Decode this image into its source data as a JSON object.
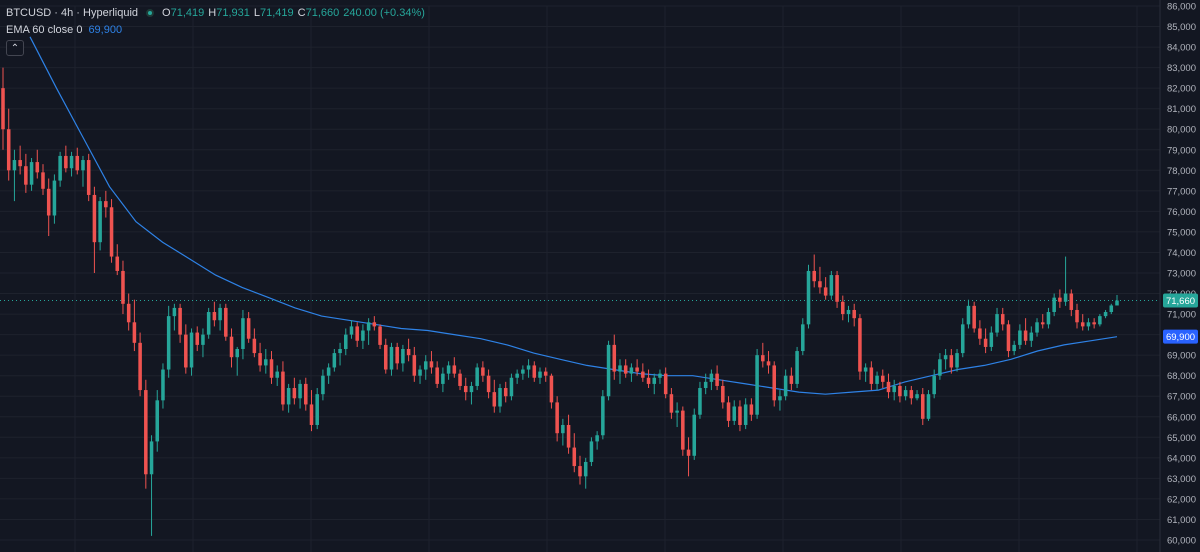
{
  "legend": {
    "symbol": "BTCUSD · 4h · Hyperliquid",
    "o_label": "O",
    "o_value": "71,419",
    "h_label": "H",
    "h_value": "71,931",
    "l_label": "L",
    "l_value": "71,419",
    "c_label": "C",
    "c_value": "71,660",
    "change": "240.00 (+0.34%)",
    "ema_name": "EMA 60 close 0",
    "ema_value": "69,900",
    "collapse_icon": "chevron-up-icon"
  },
  "colors": {
    "background": "#131722",
    "grid": "#1e222d",
    "up": "#26a69a",
    "down": "#ef5350",
    "ema": "#2e82e6",
    "price_tag": "#26a69a",
    "ema_tag": "#2962ff",
    "axis_text": "#b2b5be"
  },
  "chart_data": {
    "type": "candlestick",
    "ylim": [
      60000,
      86000
    ],
    "yticks": [
      "60,000",
      "61,000",
      "62,000",
      "63,000",
      "64,000",
      "65,000",
      "66,000",
      "67,000",
      "68,000",
      "69,000",
      "70,000",
      "71,000",
      "72,000",
      "73,000",
      "74,000",
      "75,000",
      "76,000",
      "77,000",
      "78,000",
      "79,000",
      "80,000",
      "81,000",
      "82,000",
      "83,000",
      "84,000",
      "85,000",
      "86,000"
    ],
    "last_price": 71660,
    "last_price_label": "71,660",
    "ema_last": 69900,
    "ema_last_label": "69,900",
    "candles": [
      [
        82000,
        83000,
        79000,
        80000
      ],
      [
        80000,
        81000,
        77500,
        78000
      ],
      [
        78000,
        79000,
        76500,
        78500
      ],
      [
        78500,
        79200,
        77800,
        78200
      ],
      [
        78200,
        78800,
        76900,
        77300
      ],
      [
        77300,
        78600,
        77000,
        78400
      ],
      [
        78400,
        79000,
        77600,
        77900
      ],
      [
        77900,
        78300,
        76800,
        77100
      ],
      [
        77100,
        77600,
        74800,
        75800
      ],
      [
        75800,
        77800,
        75400,
        77500
      ],
      [
        77500,
        78900,
        77200,
        78700
      ],
      [
        78700,
        79200,
        77900,
        78100
      ],
      [
        78100,
        78900,
        77700,
        78700
      ],
      [
        78700,
        79100,
        77800,
        78000
      ],
      [
        78000,
        78700,
        77200,
        78500
      ],
      [
        78500,
        78800,
        76500,
        76800
      ],
      [
        76800,
        77200,
        73000,
        74500
      ],
      [
        74500,
        76700,
        74100,
        76500
      ],
      [
        76500,
        77000,
        75700,
        76200
      ],
      [
        76200,
        76600,
        73500,
        73800
      ],
      [
        73800,
        74400,
        72900,
        73100
      ],
      [
        73100,
        73600,
        71000,
        71500
      ],
      [
        71500,
        72000,
        70200,
        70600
      ],
      [
        70600,
        71700,
        69200,
        69600
      ],
      [
        69600,
        70100,
        67000,
        67300
      ],
      [
        67300,
        67800,
        62500,
        63200
      ],
      [
        63200,
        65100,
        60200,
        64800
      ],
      [
        64800,
        67300,
        64300,
        66800
      ],
      [
        66800,
        68600,
        66400,
        68300
      ],
      [
        68300,
        71400,
        67900,
        70900
      ],
      [
        70900,
        71500,
        70200,
        71300
      ],
      [
        71300,
        71500,
        69600,
        70000
      ],
      [
        70000,
        70500,
        68100,
        68400
      ],
      [
        68400,
        70300,
        68000,
        70100
      ],
      [
        70100,
        70400,
        69200,
        69500
      ],
      [
        69500,
        70300,
        68900,
        70000
      ],
      [
        70000,
        71300,
        69800,
        71100
      ],
      [
        71100,
        71600,
        70400,
        70700
      ],
      [
        70700,
        71500,
        70200,
        71300
      ],
      [
        71300,
        71500,
        69700,
        69900
      ],
      [
        69900,
        70300,
        68400,
        68900
      ],
      [
        68900,
        69400,
        68000,
        69300
      ],
      [
        69300,
        71200,
        68800,
        70800
      ],
      [
        70800,
        71100,
        69600,
        69800
      ],
      [
        69800,
        70300,
        68900,
        69100
      ],
      [
        69100,
        69600,
        68200,
        68500
      ],
      [
        68500,
        69300,
        68100,
        68800
      ],
      [
        68800,
        69200,
        67600,
        67900
      ],
      [
        67900,
        68500,
        67500,
        68200
      ],
      [
        68200,
        68700,
        66300,
        66600
      ],
      [
        66600,
        67600,
        66200,
        67400
      ],
      [
        67400,
        67900,
        66600,
        66900
      ],
      [
        66900,
        67800,
        66400,
        67600
      ],
      [
        67600,
        67900,
        66300,
        66600
      ],
      [
        66600,
        67300,
        65300,
        65600
      ],
      [
        65600,
        67400,
        65400,
        67100
      ],
      [
        67100,
        68300,
        66800,
        68000
      ],
      [
        68000,
        68600,
        67600,
        68400
      ],
      [
        68400,
        69300,
        68200,
        69100
      ],
      [
        69100,
        69600,
        68500,
        69300
      ],
      [
        69300,
        70300,
        69000,
        70000
      ],
      [
        70000,
        70700,
        69800,
        70400
      ],
      [
        70400,
        70600,
        69400,
        69700
      ],
      [
        69700,
        70500,
        69300,
        70200
      ],
      [
        70200,
        70800,
        69500,
        70600
      ],
      [
        70600,
        70900,
        70200,
        70400
      ],
      [
        70400,
        70500,
        69300,
        69500
      ],
      [
        69500,
        69800,
        68100,
        68300
      ],
      [
        68300,
        69600,
        68000,
        69400
      ],
      [
        69400,
        69600,
        68300,
        68600
      ],
      [
        68600,
        69500,
        68200,
        69300
      ],
      [
        69300,
        69800,
        68700,
        69000
      ],
      [
        69000,
        69400,
        67700,
        68000
      ],
      [
        68000,
        68500,
        67600,
        68300
      ],
      [
        68300,
        69000,
        67800,
        68700
      ],
      [
        68700,
        69200,
        68100,
        68400
      ],
      [
        68400,
        68700,
        67400,
        67600
      ],
      [
        67600,
        68400,
        67200,
        68100
      ],
      [
        68100,
        68700,
        67800,
        68500
      ],
      [
        68500,
        68900,
        67900,
        68100
      ],
      [
        68100,
        68300,
        67300,
        67500
      ],
      [
        67500,
        67900,
        66800,
        67200
      ],
      [
        67200,
        67700,
        66600,
        67500
      ],
      [
        67500,
        68600,
        67300,
        68400
      ],
      [
        68400,
        68700,
        67700,
        68000
      ],
      [
        68000,
        68300,
        66900,
        67200
      ],
      [
        67200,
        67800,
        66200,
        66500
      ],
      [
        66500,
        67600,
        66200,
        67400
      ],
      [
        67400,
        67700,
        66700,
        67000
      ],
      [
        67000,
        68100,
        66800,
        67900
      ],
      [
        67900,
        68300,
        67600,
        68100
      ],
      [
        68100,
        68500,
        67800,
        68300
      ],
      [
        68300,
        68800,
        67900,
        68500
      ],
      [
        68500,
        68700,
        67700,
        67900
      ],
      [
        67900,
        68400,
        67600,
        68200
      ],
      [
        68200,
        68400,
        67700,
        68000
      ],
      [
        68000,
        68100,
        66400,
        66700
      ],
      [
        66700,
        67000,
        64800,
        65200
      ],
      [
        65200,
        65900,
        64600,
        65600
      ],
      [
        65600,
        66100,
        64200,
        64500
      ],
      [
        64500,
        65200,
        63300,
        63600
      ],
      [
        63600,
        64100,
        62700,
        63100
      ],
      [
        63100,
        64000,
        62500,
        63800
      ],
      [
        63800,
        65000,
        63600,
        64800
      ],
      [
        64800,
        65300,
        64400,
        65100
      ],
      [
        65100,
        67300,
        64900,
        67000
      ],
      [
        67000,
        69700,
        66800,
        69500
      ],
      [
        69500,
        70000,
        67800,
        68200
      ],
      [
        68200,
        68800,
        67600,
        68500
      ],
      [
        68500,
        68800,
        67900,
        68100
      ],
      [
        68100,
        68600,
        67700,
        68400
      ],
      [
        68400,
        68800,
        68000,
        68200
      ],
      [
        68200,
        68600,
        67700,
        67900
      ],
      [
        67900,
        68300,
        67400,
        67600
      ],
      [
        67600,
        68100,
        67100,
        67900
      ],
      [
        67900,
        68300,
        67600,
        68100
      ],
      [
        68100,
        68400,
        66900,
        67100
      ],
      [
        67100,
        67400,
        65900,
        66200
      ],
      [
        66200,
        66700,
        65500,
        66300
      ],
      [
        66300,
        66500,
        64100,
        64400
      ],
      [
        64400,
        65000,
        63100,
        64100
      ],
      [
        64100,
        66400,
        63900,
        66100
      ],
      [
        66100,
        67700,
        65900,
        67400
      ],
      [
        67400,
        68100,
        67100,
        67700
      ],
      [
        67700,
        68300,
        67300,
        68100
      ],
      [
        68100,
        68500,
        67300,
        67500
      ],
      [
        67500,
        67800,
        66400,
        66700
      ],
      [
        66700,
        67000,
        65500,
        65800
      ],
      [
        65800,
        66800,
        65600,
        66500
      ],
      [
        66500,
        66800,
        65300,
        65600
      ],
      [
        65600,
        66900,
        65400,
        66600
      ],
      [
        66600,
        66900,
        65800,
        66100
      ],
      [
        66100,
        69300,
        65900,
        69000
      ],
      [
        69000,
        69600,
        68400,
        68700
      ],
      [
        68700,
        69200,
        68100,
        68500
      ],
      [
        68500,
        68700,
        66500,
        66800
      ],
      [
        66800,
        67300,
        66300,
        67000
      ],
      [
        67000,
        68300,
        66800,
        68000
      ],
      [
        68000,
        68400,
        67300,
        67600
      ],
      [
        67600,
        69400,
        67400,
        69200
      ],
      [
        69200,
        70800,
        69000,
        70500
      ],
      [
        70500,
        73400,
        70300,
        73100
      ],
      [
        73100,
        73900,
        72300,
        72600
      ],
      [
        72600,
        73300,
        72000,
        72300
      ],
      [
        72300,
        72800,
        71700,
        71900
      ],
      [
        71900,
        73100,
        71700,
        72900
      ],
      [
        72900,
        73100,
        71300,
        71600
      ],
      [
        71600,
        71900,
        70700,
        71000
      ],
      [
        71000,
        71400,
        70600,
        71200
      ],
      [
        71200,
        71500,
        70400,
        70800
      ],
      [
        70800,
        71000,
        67800,
        68200
      ],
      [
        68200,
        68600,
        67700,
        68400
      ],
      [
        68400,
        68700,
        67300,
        67600
      ],
      [
        67600,
        68200,
        67300,
        68000
      ],
      [
        68000,
        68300,
        67400,
        67700
      ],
      [
        67700,
        68100,
        66900,
        67200
      ],
      [
        67200,
        67800,
        66800,
        67500
      ],
      [
        67500,
        67700,
        66700,
        67000
      ],
      [
        67000,
        67500,
        66800,
        67300
      ],
      [
        67300,
        67500,
        66600,
        66900
      ],
      [
        66900,
        67300,
        66800,
        67100
      ],
      [
        67100,
        67400,
        65600,
        65900
      ],
      [
        65900,
        67300,
        65800,
        67100
      ],
      [
        67100,
        68300,
        66900,
        68000
      ],
      [
        68000,
        69100,
        67800,
        68800
      ],
      [
        68800,
        69300,
        68300,
        69000
      ],
      [
        69000,
        69300,
        68100,
        68400
      ],
      [
        68400,
        69300,
        68200,
        69100
      ],
      [
        69100,
        70800,
        68900,
        70500
      ],
      [
        70500,
        71700,
        70300,
        71400
      ],
      [
        71400,
        71600,
        70100,
        70300
      ],
      [
        70300,
        70700,
        69500,
        69800
      ],
      [
        69800,
        70300,
        69100,
        69400
      ],
      [
        69400,
        70400,
        69200,
        70100
      ],
      [
        70100,
        71300,
        69900,
        71000
      ],
      [
        71000,
        71300,
        70200,
        70500
      ],
      [
        70500,
        70700,
        68900,
        69200
      ],
      [
        69200,
        69700,
        69000,
        69500
      ],
      [
        69500,
        70500,
        69300,
        70200
      ],
      [
        70200,
        70800,
        69500,
        69700
      ],
      [
        69700,
        70400,
        69400,
        70100
      ],
      [
        70100,
        70800,
        69900,
        70600
      ],
      [
        70600,
        71000,
        70300,
        70500
      ],
      [
        70500,
        71300,
        70300,
        71100
      ],
      [
        71100,
        72000,
        70900,
        71800
      ],
      [
        71800,
        72200,
        71300,
        71600
      ],
      [
        71600,
        73800,
        71400,
        72000
      ],
      [
        72000,
        72200,
        70900,
        71200
      ],
      [
        71200,
        71500,
        70300,
        70600
      ],
      [
        70600,
        71000,
        70200,
        70400
      ],
      [
        70400,
        70800,
        70200,
        70600
      ],
      [
        70600,
        70800,
        70300,
        70500
      ],
      [
        70500,
        71000,
        70400,
        70900
      ],
      [
        70900,
        71200,
        70800,
        71100
      ],
      [
        71100,
        71500,
        71000,
        71420
      ],
      [
        71419,
        71931,
        71419,
        71660
      ]
    ],
    "ema": [
      84500,
      82000,
      79600,
      77200,
      75500,
      74500,
      73700,
      72900,
      72300,
      71800,
      71300,
      70900,
      70700,
      70500,
      70300,
      70200,
      70000,
      69800,
      69500,
      69100,
      68800,
      68500,
      68300,
      68100,
      68000,
      68000,
      67800,
      67600,
      67400,
      67200,
      67100,
      67200,
      67300,
      67700,
      68000,
      68300,
      68500,
      68800,
      69200,
      69500,
      69700,
      69900
    ]
  }
}
